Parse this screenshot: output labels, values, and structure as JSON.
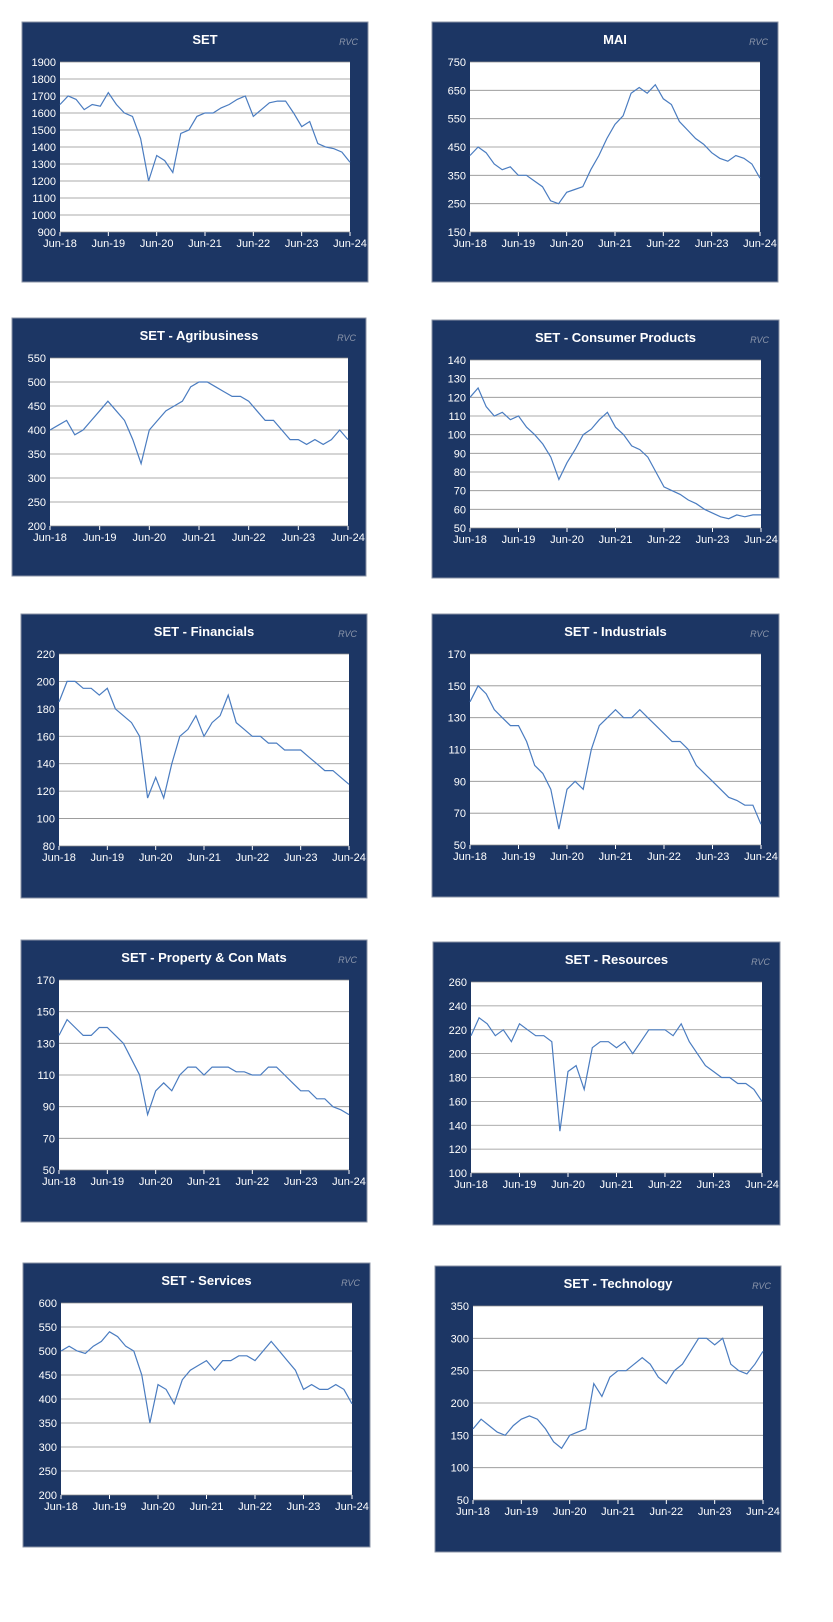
{
  "chart_data": [
    {
      "type": "line",
      "title": "SET",
      "watermark": "RVC",
      "color": "#4a7cc0",
      "grid": true,
      "categories": [
        "Jun-18",
        null,
        null,
        null,
        null,
        null,
        "Jun-19",
        null,
        null,
        null,
        null,
        null,
        "Jun-20",
        null,
        null,
        null,
        null,
        null,
        "Jun-21",
        null,
        null,
        null,
        null,
        null,
        "Jun-22",
        null,
        null,
        null,
        null,
        null,
        "Jun-23",
        null,
        null,
        null,
        null,
        null,
        "Jun-24"
      ],
      "values": [
        1650,
        1700,
        1680,
        1620,
        1650,
        1640,
        1720,
        1650,
        1600,
        1580,
        1450,
        1200,
        1350,
        1320,
        1250,
        1480,
        1500,
        1580,
        1600,
        1600,
        1630,
        1650,
        1680,
        1700,
        1580,
        1620,
        1660,
        1670,
        1670,
        1600,
        1520,
        1550,
        1420,
        1400,
        1390,
        1370,
        1310
      ],
      "ylim": [
        900,
        1900
      ],
      "yticks": [
        900,
        1000,
        1100,
        1200,
        1300,
        1400,
        1500,
        1600,
        1700,
        1800,
        1900
      ]
    },
    {
      "type": "line",
      "title": "MAI",
      "watermark": "RVC",
      "color": "#4a7cc0",
      "grid": true,
      "categories": [
        "Jun-18",
        null,
        null,
        null,
        null,
        null,
        "Jun-19",
        null,
        null,
        null,
        null,
        null,
        "Jun-20",
        null,
        null,
        null,
        null,
        null,
        "Jun-21",
        null,
        null,
        null,
        null,
        null,
        "Jun-22",
        null,
        null,
        null,
        null,
        null,
        "Jun-23",
        null,
        null,
        null,
        null,
        null,
        "Jun-24"
      ],
      "values": [
        420,
        450,
        430,
        390,
        370,
        380,
        350,
        350,
        330,
        310,
        260,
        250,
        290,
        300,
        310,
        370,
        420,
        480,
        530,
        560,
        640,
        660,
        640,
        670,
        620,
        600,
        540,
        510,
        480,
        460,
        430,
        410,
        400,
        420,
        410,
        390,
        340
      ],
      "ylim": [
        150,
        750
      ],
      "yticks": [
        150,
        250,
        350,
        450,
        550,
        650,
        750
      ]
    },
    {
      "type": "line",
      "title": "SET - Agribusiness",
      "watermark": "RVC",
      "color": "#4a7cc0",
      "grid": true,
      "categories": [
        "Jun-18",
        null,
        null,
        null,
        null,
        null,
        "Jun-19",
        null,
        null,
        null,
        null,
        null,
        "Jun-20",
        null,
        null,
        null,
        null,
        null,
        "Jun-21",
        null,
        null,
        null,
        null,
        null,
        "Jun-22",
        null,
        null,
        null,
        null,
        null,
        "Jun-23",
        null,
        null,
        null,
        null,
        null,
        "Jun-24"
      ],
      "values": [
        400,
        410,
        420,
        390,
        400,
        420,
        440,
        460,
        440,
        420,
        380,
        330,
        400,
        420,
        440,
        450,
        460,
        490,
        500,
        500,
        490,
        480,
        470,
        470,
        460,
        440,
        420,
        420,
        400,
        380,
        380,
        370,
        380,
        370,
        380,
        400,
        380
      ],
      "ylim": [
        200,
        550
      ],
      "yticks": [
        200,
        250,
        300,
        350,
        400,
        450,
        500,
        550
      ]
    },
    {
      "type": "line",
      "title": "SET - Consumer Products",
      "watermark": "RVC",
      "color": "#4a7cc0",
      "grid": true,
      "categories": [
        "Jun-18",
        null,
        null,
        null,
        null,
        null,
        "Jun-19",
        null,
        null,
        null,
        null,
        null,
        "Jun-20",
        null,
        null,
        null,
        null,
        null,
        "Jun-21",
        null,
        null,
        null,
        null,
        null,
        "Jun-22",
        null,
        null,
        null,
        null,
        null,
        "Jun-23",
        null,
        null,
        null,
        null,
        null,
        "Jun-24"
      ],
      "values": [
        120,
        125,
        115,
        110,
        112,
        108,
        110,
        104,
        100,
        95,
        88,
        76,
        85,
        92,
        100,
        103,
        108,
        112,
        104,
        100,
        94,
        92,
        88,
        80,
        72,
        70,
        68,
        65,
        63,
        60,
        58,
        56,
        55,
        57,
        56,
        57,
        57
      ],
      "ylim": [
        50,
        140
      ],
      "yticks": [
        50,
        60,
        70,
        80,
        90,
        100,
        110,
        120,
        130,
        140
      ]
    },
    {
      "type": "line",
      "title": "SET - Financials",
      "watermark": "RVC",
      "color": "#4a7cc0",
      "grid": true,
      "categories": [
        "Jun-18",
        null,
        null,
        null,
        null,
        null,
        "Jun-19",
        null,
        null,
        null,
        null,
        null,
        "Jun-20",
        null,
        null,
        null,
        null,
        null,
        "Jun-21",
        null,
        null,
        null,
        null,
        null,
        "Jun-22",
        null,
        null,
        null,
        null,
        null,
        "Jun-23",
        null,
        null,
        null,
        null,
        null,
        "Jun-24"
      ],
      "values": [
        185,
        200,
        200,
        195,
        195,
        190,
        195,
        180,
        175,
        170,
        160,
        115,
        130,
        115,
        140,
        160,
        165,
        175,
        160,
        170,
        175,
        190,
        170,
        165,
        160,
        160,
        155,
        155,
        150,
        150,
        150,
        145,
        140,
        135,
        135,
        130,
        125
      ],
      "ylim": [
        80,
        220
      ],
      "yticks": [
        80,
        100,
        120,
        140,
        160,
        180,
        200,
        220
      ]
    },
    {
      "type": "line",
      "title": "SET - Industrials",
      "watermark": "RVC",
      "color": "#4a7cc0",
      "grid": true,
      "categories": [
        "Jun-18",
        null,
        null,
        null,
        null,
        null,
        "Jun-19",
        null,
        null,
        null,
        null,
        null,
        "Jun-20",
        null,
        null,
        null,
        null,
        null,
        "Jun-21",
        null,
        null,
        null,
        null,
        null,
        "Jun-22",
        null,
        null,
        null,
        null,
        null,
        "Jun-23",
        null,
        null,
        null,
        null,
        null,
        "Jun-24"
      ],
      "values": [
        140,
        150,
        145,
        135,
        130,
        125,
        125,
        115,
        100,
        95,
        85,
        60,
        85,
        90,
        85,
        110,
        125,
        130,
        135,
        130,
        130,
        135,
        130,
        125,
        120,
        115,
        115,
        110,
        100,
        95,
        90,
        85,
        80,
        78,
        75,
        75,
        63
      ],
      "ylim": [
        50,
        170
      ],
      "yticks": [
        50,
        70,
        90,
        110,
        130,
        150,
        170
      ]
    },
    {
      "type": "line",
      "title": "SET - Property & Con Mats",
      "watermark": "RVC",
      "color": "#4a7cc0",
      "grid": true,
      "categories": [
        "Jun-18",
        null,
        null,
        null,
        null,
        null,
        "Jun-19",
        null,
        null,
        null,
        null,
        null,
        "Jun-20",
        null,
        null,
        null,
        null,
        null,
        "Jun-21",
        null,
        null,
        null,
        null,
        null,
        "Jun-22",
        null,
        null,
        null,
        null,
        null,
        "Jun-23",
        null,
        null,
        null,
        null,
        null,
        "Jun-24"
      ],
      "values": [
        135,
        145,
        140,
        135,
        135,
        140,
        140,
        135,
        130,
        120,
        110,
        85,
        100,
        105,
        100,
        110,
        115,
        115,
        110,
        115,
        115,
        115,
        112,
        112,
        110,
        110,
        115,
        115,
        110,
        105,
        100,
        100,
        95,
        95,
        90,
        88,
        85
      ],
      "ylim": [
        50,
        170
      ],
      "yticks": [
        50,
        70,
        90,
        110,
        130,
        150,
        170
      ]
    },
    {
      "type": "line",
      "title": "SET - Resources",
      "watermark": "RVC",
      "color": "#4a7cc0",
      "grid": true,
      "categories": [
        "Jun-18",
        null,
        null,
        null,
        null,
        null,
        "Jun-19",
        null,
        null,
        null,
        null,
        null,
        "Jun-20",
        null,
        null,
        null,
        null,
        null,
        "Jun-21",
        null,
        null,
        null,
        null,
        null,
        "Jun-22",
        null,
        null,
        null,
        null,
        null,
        "Jun-23",
        null,
        null,
        null,
        null,
        null,
        "Jun-24"
      ],
      "values": [
        215,
        230,
        225,
        215,
        220,
        210,
        225,
        220,
        215,
        215,
        210,
        135,
        185,
        190,
        170,
        205,
        210,
        210,
        205,
        210,
        200,
        210,
        220,
        220,
        220,
        215,
        225,
        210,
        200,
        190,
        185,
        180,
        180,
        175,
        175,
        170,
        160
      ],
      "ylim": [
        100,
        260
      ],
      "yticks": [
        100,
        120,
        140,
        160,
        180,
        200,
        220,
        240,
        260
      ]
    },
    {
      "type": "line",
      "title": "SET - Services",
      "watermark": "RVC",
      "color": "#4a7cc0",
      "grid": true,
      "categories": [
        "Jun-18",
        null,
        null,
        null,
        null,
        null,
        "Jun-19",
        null,
        null,
        null,
        null,
        null,
        "Jun-20",
        null,
        null,
        null,
        null,
        null,
        "Jun-21",
        null,
        null,
        null,
        null,
        null,
        "Jun-22",
        null,
        null,
        null,
        null,
        null,
        "Jun-23",
        null,
        null,
        null,
        null,
        null,
        "Jun-24"
      ],
      "values": [
        500,
        510,
        500,
        495,
        510,
        520,
        540,
        530,
        510,
        500,
        450,
        350,
        430,
        420,
        390,
        440,
        460,
        470,
        480,
        460,
        480,
        480,
        490,
        490,
        480,
        500,
        520,
        500,
        480,
        460,
        420,
        430,
        420,
        420,
        430,
        420,
        390
      ],
      "ylim": [
        200,
        600
      ],
      "yticks": [
        200,
        250,
        300,
        350,
        400,
        450,
        500,
        550,
        600
      ]
    },
    {
      "type": "line",
      "title": "SET - Technology",
      "watermark": "RVC",
      "color": "#4a7cc0",
      "grid": true,
      "categories": [
        "Jun-18",
        null,
        null,
        null,
        null,
        null,
        "Jun-19",
        null,
        null,
        null,
        null,
        null,
        "Jun-20",
        null,
        null,
        null,
        null,
        null,
        "Jun-21",
        null,
        null,
        null,
        null,
        null,
        "Jun-22",
        null,
        null,
        null,
        null,
        null,
        "Jun-23",
        null,
        null,
        null,
        null,
        null,
        "Jun-24"
      ],
      "values": [
        160,
        175,
        165,
        155,
        150,
        165,
        175,
        180,
        175,
        160,
        140,
        130,
        150,
        155,
        160,
        230,
        210,
        240,
        250,
        250,
        260,
        270,
        260,
        240,
        230,
        250,
        260,
        280,
        300,
        300,
        290,
        300,
        260,
        250,
        245,
        260,
        280
      ],
      "ylim": [
        50,
        350
      ],
      "yticks": [
        50,
        100,
        150,
        200,
        250,
        300,
        350
      ]
    }
  ]
}
